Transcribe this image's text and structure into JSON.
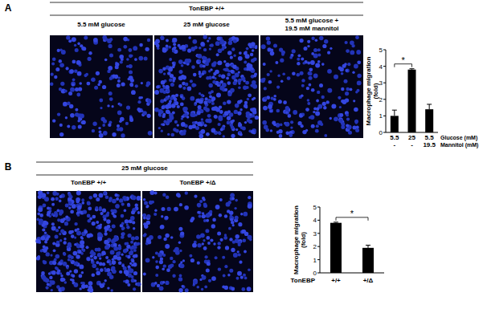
{
  "figure": {
    "panels": [
      {
        "label": "A",
        "header": "TonEBP +/+",
        "image_captions": [
          [
            "5.5 mM glucose"
          ],
          [
            "25 mM glucose"
          ],
          [
            "5.5 mM glucose +",
            "19.5 mM mannitol"
          ]
        ]
      },
      {
        "label": "B",
        "header": "25 mM glucose",
        "image_captions": [
          [
            "TonEBP +/+"
          ],
          [
            "TonEBP +/Δ"
          ]
        ]
      }
    ]
  },
  "chart_data": [
    {
      "type": "bar",
      "y_label": "Macrophage migration (fold)",
      "categories": [
        "5.5",
        "25",
        "5.5"
      ],
      "category_label": "Glucose (mM)",
      "second_row": {
        "label": "Mannitol (mM)",
        "values": [
          "-",
          "-",
          "19.5"
        ]
      },
      "values": [
        1.0,
        3.8,
        1.4
      ],
      "errors": [
        0.35,
        0.05,
        0.3
      ],
      "color": "#000000",
      "ylim": [
        0,
        5
      ],
      "yticks": [
        0,
        1,
        2,
        3,
        4,
        5
      ],
      "annotations": [
        {
          "text": "*",
          "from": 0,
          "to": 1
        }
      ]
    },
    {
      "type": "bar",
      "y_label": "Macrophage migration (fold)",
      "categories": [
        "+/+",
        "+/Δ"
      ],
      "category_label": "TonEBP",
      "values": [
        3.8,
        1.9
      ],
      "errors": [
        0.05,
        0.2
      ],
      "color": "#000000",
      "ylim": [
        0,
        5
      ],
      "yticks": [
        0,
        1,
        2,
        3,
        4,
        5
      ],
      "annotations": [
        {
          "text": "*",
          "from": 0,
          "to": 1
        }
      ]
    }
  ]
}
